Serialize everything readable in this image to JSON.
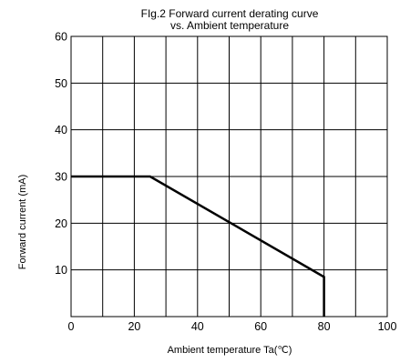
{
  "chart_data": {
    "type": "line",
    "title_lines": [
      "FIg.2 Forward current derating curve",
      "vs. Ambient temperature"
    ],
    "xlabel": "Ambient temperature Ta(℃)",
    "ylabel": "Forward current (mA)",
    "xlim": [
      0,
      100
    ],
    "ylim": [
      0,
      60
    ],
    "x_ticks": [
      0,
      20,
      40,
      60,
      80,
      100
    ],
    "y_ticks": [
      10,
      20,
      30,
      40,
      50,
      60
    ],
    "x_grid_step": 10,
    "y_grid_step": 10,
    "grid": true,
    "legend": "none",
    "series": [
      {
        "x": [
          0,
          25,
          80,
          80
        ],
        "y": [
          30,
          30,
          8.5,
          0
        ]
      }
    ],
    "line_color": "#000000"
  }
}
